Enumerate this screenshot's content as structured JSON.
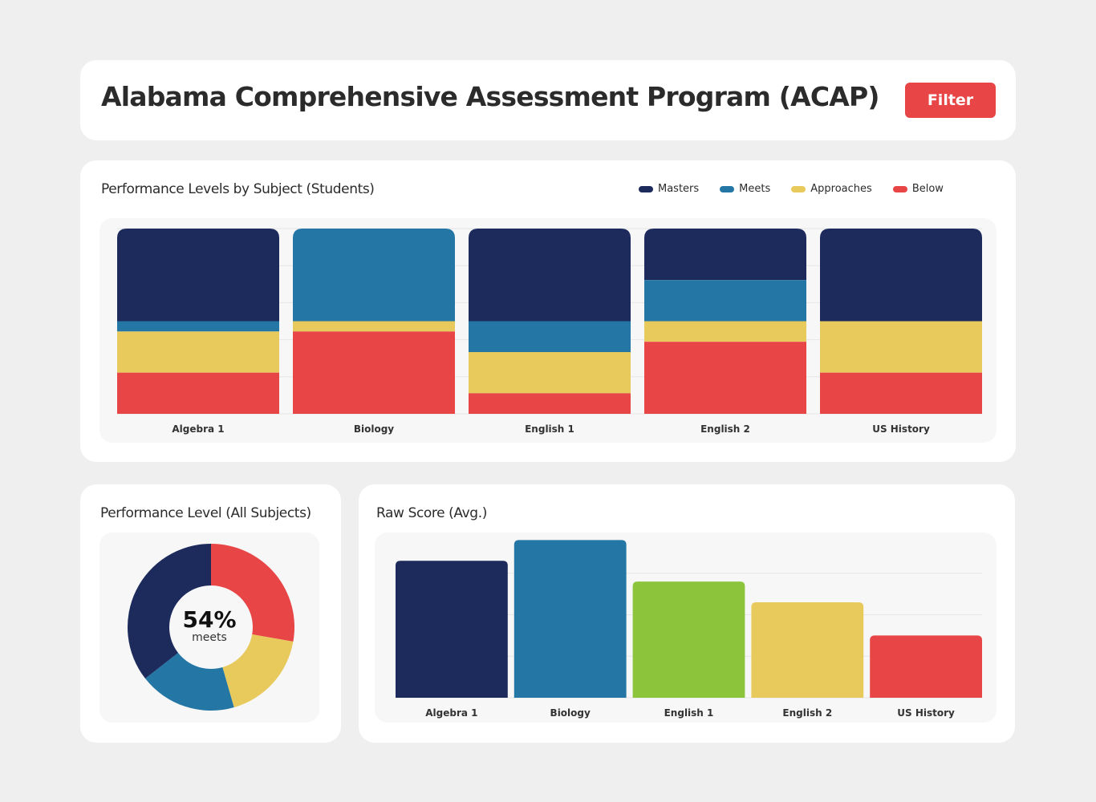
{
  "header": {
    "title": "Alabama Comprehensive Assessment Program (ACAP)",
    "filter_label": "Filter"
  },
  "colors": {
    "Masters": "#1c2a5c",
    "Meets": "#2476a5",
    "Approaches": "#e8ca5c",
    "Below": "#e84646",
    "green": "#8cc43c"
  },
  "chart_data": [
    {
      "type": "bar",
      "stacked": true,
      "title": "Performance Levels by Subject (Students)",
      "legend_position": "top-right",
      "grid": true,
      "categories": [
        "Algebra 1",
        "Biology",
        "English 1",
        "English 2",
        "US History"
      ],
      "series": [
        {
          "name": "Masters",
          "values": [
            9,
            0,
            9,
            5,
            9
          ]
        },
        {
          "name": "Meets",
          "values": [
            1,
            9,
            3,
            4,
            0
          ]
        },
        {
          "name": "Approaches",
          "values": [
            4,
            1,
            4,
            2,
            5
          ]
        },
        {
          "name": "Below",
          "values": [
            4,
            8,
            2,
            7,
            4
          ]
        }
      ],
      "ylim": [
        0,
        18
      ]
    },
    {
      "type": "pie",
      "donut": true,
      "title": "Performance Level (All Subjects)",
      "labels": [
        "Below",
        "Approaches",
        "Meets",
        "Masters"
      ],
      "values": [
        25,
        16,
        17,
        32
      ],
      "center_value": "54%",
      "center_label": "meets"
    },
    {
      "type": "bar",
      "title": "Raw Score (Avg.)",
      "grid": true,
      "categories": [
        "Algebra 1",
        "Biology",
        "English 1",
        "English 2",
        "US History"
      ],
      "values": [
        3.3,
        3.8,
        2.8,
        2.3,
        1.5
      ],
      "colors": [
        "#1c2a5c",
        "#2476a5",
        "#8cc43c",
        "#e8ca5c",
        "#e84646"
      ],
      "ylim": [
        0,
        4
      ]
    }
  ]
}
